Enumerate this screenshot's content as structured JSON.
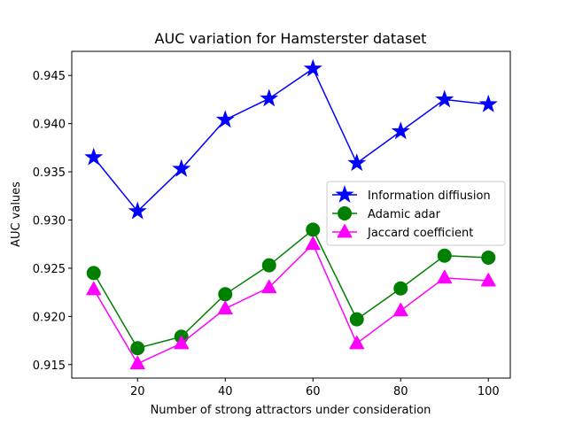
{
  "chart_data": {
    "type": "line",
    "title": "AUC variation for Hamsterster dataset",
    "xlabel": "Number of strong attractors under consideration",
    "ylabel": "AUC values",
    "x": [
      10,
      20,
      30,
      40,
      50,
      60,
      70,
      80,
      90,
      100
    ],
    "xlim": [
      5,
      105
    ],
    "ylim": [
      0.9136,
      0.9475
    ],
    "xticks": [
      20,
      40,
      60,
      80,
      100
    ],
    "yticks": [
      0.915,
      0.92,
      0.925,
      0.93,
      0.935,
      0.94,
      0.945
    ],
    "ytick_labels": [
      "0.915",
      "0.920",
      "0.925",
      "0.930",
      "0.935",
      "0.940",
      "0.945"
    ],
    "grid": false,
    "legend_position": "center-right",
    "series": [
      {
        "name": "Information diffiusion",
        "color": "#0000ff",
        "marker": "star",
        "values": [
          0.9365,
          0.9309,
          0.9353,
          0.9404,
          0.9426,
          0.9457,
          0.9359,
          0.9392,
          0.9425,
          0.942
        ]
      },
      {
        "name": "Adamic adar",
        "color": "#008000",
        "marker": "circle",
        "values": [
          0.9245,
          0.9167,
          0.9179,
          0.9223,
          0.9253,
          0.929,
          0.9197,
          0.9229,
          0.9263,
          0.9261
        ]
      },
      {
        "name": "Jaccard coefficient",
        "color": "#ff00ff",
        "marker": "triangle",
        "values": [
          0.9228,
          0.9151,
          0.9172,
          0.9208,
          0.923,
          0.9275,
          0.9172,
          0.9206,
          0.924,
          0.9237
        ]
      }
    ]
  }
}
